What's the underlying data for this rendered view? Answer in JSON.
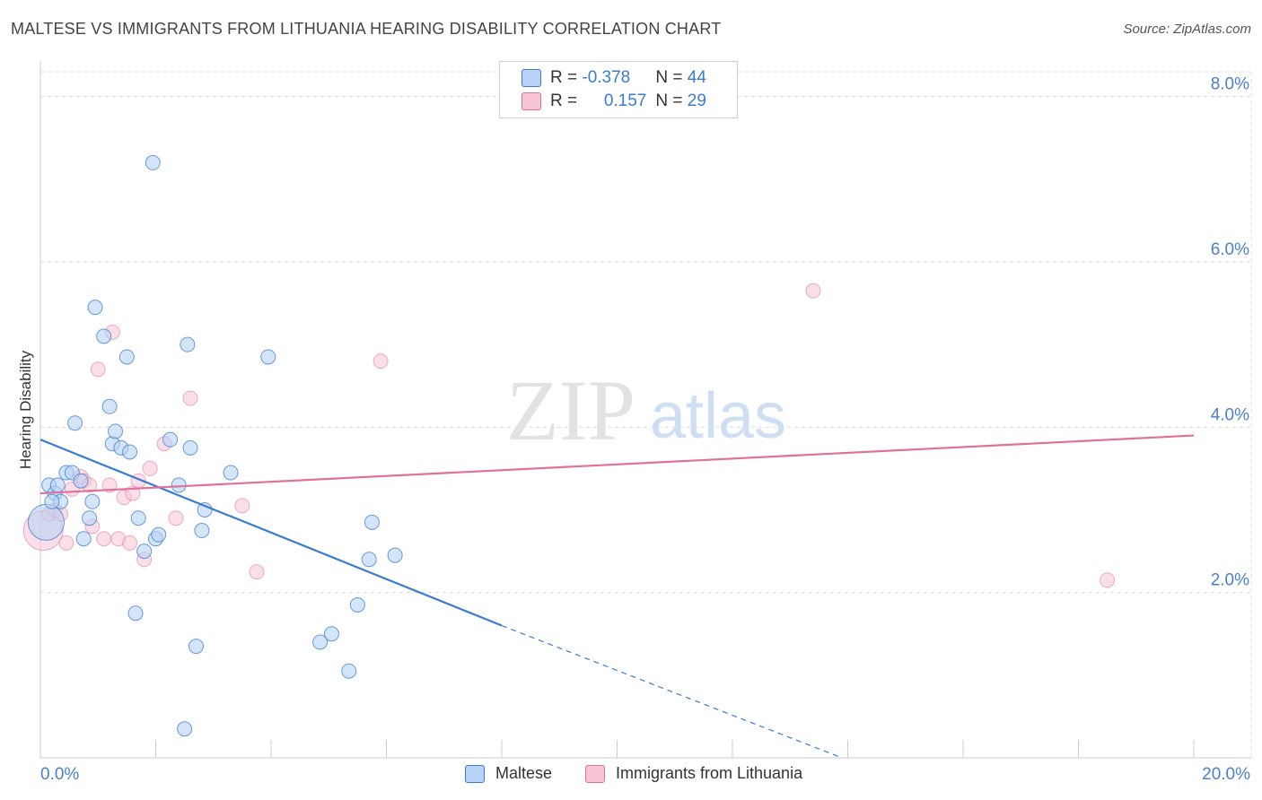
{
  "header": {
    "title": "MALTESE VS IMMIGRANTS FROM LITHUANIA HEARING DISABILITY CORRELATION CHART",
    "source": "Source: ZipAtlas.com"
  },
  "legend_top": {
    "row1": {
      "r_label": "R = ",
      "r_value": "-0.378",
      "n_label": "N = ",
      "n_value": "44"
    },
    "row2": {
      "r_label": "R = ",
      "r_value": "0.157",
      "n_label": "N = ",
      "n_value": "29"
    }
  },
  "legend_bottom": {
    "series1": "Maltese",
    "series2": "Immigrants from Lithuania"
  },
  "watermark": {
    "zip": "ZIP",
    "atlas": "atlas"
  },
  "colors": {
    "blue": "#3a7bd5",
    "blue_fill": "#b8d3f5",
    "pink": "#e0709a",
    "pink_fill": "#f8c5d5",
    "grid": "#dddddd",
    "axis_text": "#4a7fcf"
  },
  "chart_data": {
    "type": "scatter",
    "title": "MALTESE VS IMMIGRANTS FROM LITHUANIA HEARING DISABILITY CORRELATION CHART",
    "xlabel": "",
    "ylabel": "Hearing Disability",
    "xlim": [
      0,
      20
    ],
    "ylim": [
      0,
      8.3
    ],
    "x_tick_labels": [
      {
        "value": 0,
        "label": "0.0%"
      },
      {
        "value": 20,
        "label": "20.0%"
      }
    ],
    "y_tick_labels": [
      {
        "value": 2,
        "label": "2.0%"
      },
      {
        "value": 4,
        "label": "4.0%"
      },
      {
        "value": 6,
        "label": "6.0%"
      },
      {
        "value": 8,
        "label": "8.0%"
      }
    ],
    "series": [
      {
        "name": "Maltese",
        "color": "#3a7bd5",
        "points": [
          [
            0.1,
            2.85
          ],
          [
            0.15,
            3.3
          ],
          [
            0.25,
            3.2
          ],
          [
            0.3,
            3.3
          ],
          [
            0.35,
            3.1
          ],
          [
            0.45,
            3.45
          ],
          [
            0.55,
            3.45
          ],
          [
            0.6,
            4.05
          ],
          [
            0.7,
            3.35
          ],
          [
            0.75,
            2.65
          ],
          [
            0.85,
            2.9
          ],
          [
            0.9,
            3.1
          ],
          [
            0.95,
            5.45
          ],
          [
            1.1,
            5.1
          ],
          [
            1.2,
            4.25
          ],
          [
            1.25,
            3.8
          ],
          [
            1.3,
            3.95
          ],
          [
            1.4,
            3.75
          ],
          [
            1.5,
            4.85
          ],
          [
            1.55,
            3.7
          ],
          [
            1.65,
            1.75
          ],
          [
            1.7,
            2.9
          ],
          [
            1.8,
            2.5
          ],
          [
            1.95,
            7.2
          ],
          [
            2.0,
            2.65
          ],
          [
            2.05,
            2.7
          ],
          [
            2.25,
            3.85
          ],
          [
            2.4,
            3.3
          ],
          [
            2.5,
            0.35
          ],
          [
            2.55,
            5.0
          ],
          [
            2.6,
            3.75
          ],
          [
            2.7,
            1.35
          ],
          [
            2.8,
            2.75
          ],
          [
            2.85,
            3.0
          ],
          [
            3.3,
            3.45
          ],
          [
            3.95,
            4.85
          ],
          [
            4.85,
            1.4
          ],
          [
            5.05,
            1.5
          ],
          [
            5.35,
            1.05
          ],
          [
            5.5,
            1.85
          ],
          [
            5.7,
            2.4
          ],
          [
            5.75,
            2.85
          ],
          [
            6.15,
            2.45
          ],
          [
            0.2,
            3.1
          ]
        ],
        "trend": {
          "x0": 0,
          "y0": 3.85,
          "x1": 8.0,
          "y1": 1.6,
          "dashed_to_x": 13.9,
          "dashed_to_y": 0.0
        }
      },
      {
        "name": "Immigrants from Lithuania",
        "color": "#e0709a",
        "points": [
          [
            0.05,
            2.75
          ],
          [
            0.15,
            2.95
          ],
          [
            0.25,
            3.0
          ],
          [
            0.35,
            2.95
          ],
          [
            0.45,
            2.6
          ],
          [
            0.55,
            3.25
          ],
          [
            0.7,
            3.4
          ],
          [
            0.75,
            3.35
          ],
          [
            0.85,
            3.3
          ],
          [
            0.9,
            2.8
          ],
          [
            1.0,
            4.7
          ],
          [
            1.1,
            2.65
          ],
          [
            1.2,
            3.3
          ],
          [
            1.25,
            5.15
          ],
          [
            1.35,
            2.65
          ],
          [
            1.45,
            3.15
          ],
          [
            1.55,
            2.6
          ],
          [
            1.6,
            3.2
          ],
          [
            1.7,
            3.35
          ],
          [
            1.8,
            2.4
          ],
          [
            1.9,
            3.5
          ],
          [
            2.15,
            3.8
          ],
          [
            2.35,
            2.9
          ],
          [
            2.6,
            4.35
          ],
          [
            3.5,
            3.05
          ],
          [
            3.75,
            2.25
          ],
          [
            5.9,
            4.8
          ],
          [
            13.4,
            5.65
          ],
          [
            18.5,
            2.15
          ]
        ],
        "trend": {
          "x0": 0,
          "y0": 3.2,
          "x1": 20,
          "y1": 3.9
        }
      }
    ]
  }
}
